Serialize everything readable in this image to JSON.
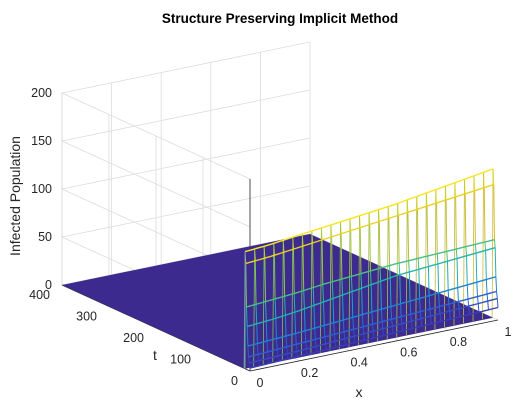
{
  "chart_data": {
    "type": "surface-mesh-3d",
    "title": "Structure Preserving Implicit Method",
    "xlabel": "x",
    "ylabel": "t",
    "zlabel": "Infected Population",
    "xlim": [
      0,
      1
    ],
    "ylim": [
      0,
      400
    ],
    "zlim": [
      0,
      200
    ],
    "x_ticks": [
      "0",
      "0.2",
      "0.4",
      "0.6",
      "0.8",
      "1"
    ],
    "y_ticks": [
      "0",
      "100",
      "200",
      "300",
      "400"
    ],
    "z_ticks": [
      "0",
      "50",
      "100",
      "150",
      "200"
    ],
    "grid": true,
    "colormap": [
      "#3e26a8",
      "#2d62d4",
      "#17a0cf",
      "#2cb9a0",
      "#82c457",
      "#d8bb30",
      "#f9e01e",
      "#f9fb0e"
    ],
    "surface_color_below_t_edge": "#3c2a8f",
    "profiles": [
      {
        "t": 0,
        "values": [
          3,
          4,
          5,
          6,
          7,
          8,
          9,
          10,
          11,
          12,
          13
        ]
      },
      {
        "t": 1.5,
        "values": [
          8,
          9,
          10,
          11.5,
          13,
          14.5,
          16,
          17.5,
          19,
          20.5,
          22
        ]
      },
      {
        "t": 3,
        "values": [
          14,
          15.5,
          17,
          18.5,
          20,
          21.5,
          23,
          24.5,
          26,
          27.5,
          29
        ]
      },
      {
        "t": 4.5,
        "values": [
          25,
          26.5,
          28,
          30,
          32,
          34,
          36,
          38,
          40,
          42,
          44
        ]
      },
      {
        "t": 6,
        "values": [
          45,
          47,
          50,
          54,
          58,
          62,
          66,
          68,
          70,
          72,
          74
        ]
      },
      {
        "t": 7.5,
        "values": [
          65,
          67,
          69,
          72,
          74,
          76,
          78,
          79,
          80,
          81,
          82
        ]
      },
      {
        "t": 9,
        "values": [
          110,
          112,
          115,
          118,
          121,
          124,
          127,
          130,
          133,
          136,
          139
        ]
      },
      {
        "t": 10.5,
        "values": [
          122,
          124,
          127,
          130,
          133,
          136,
          139,
          143,
          147,
          151,
          155
        ]
      }
    ]
  }
}
